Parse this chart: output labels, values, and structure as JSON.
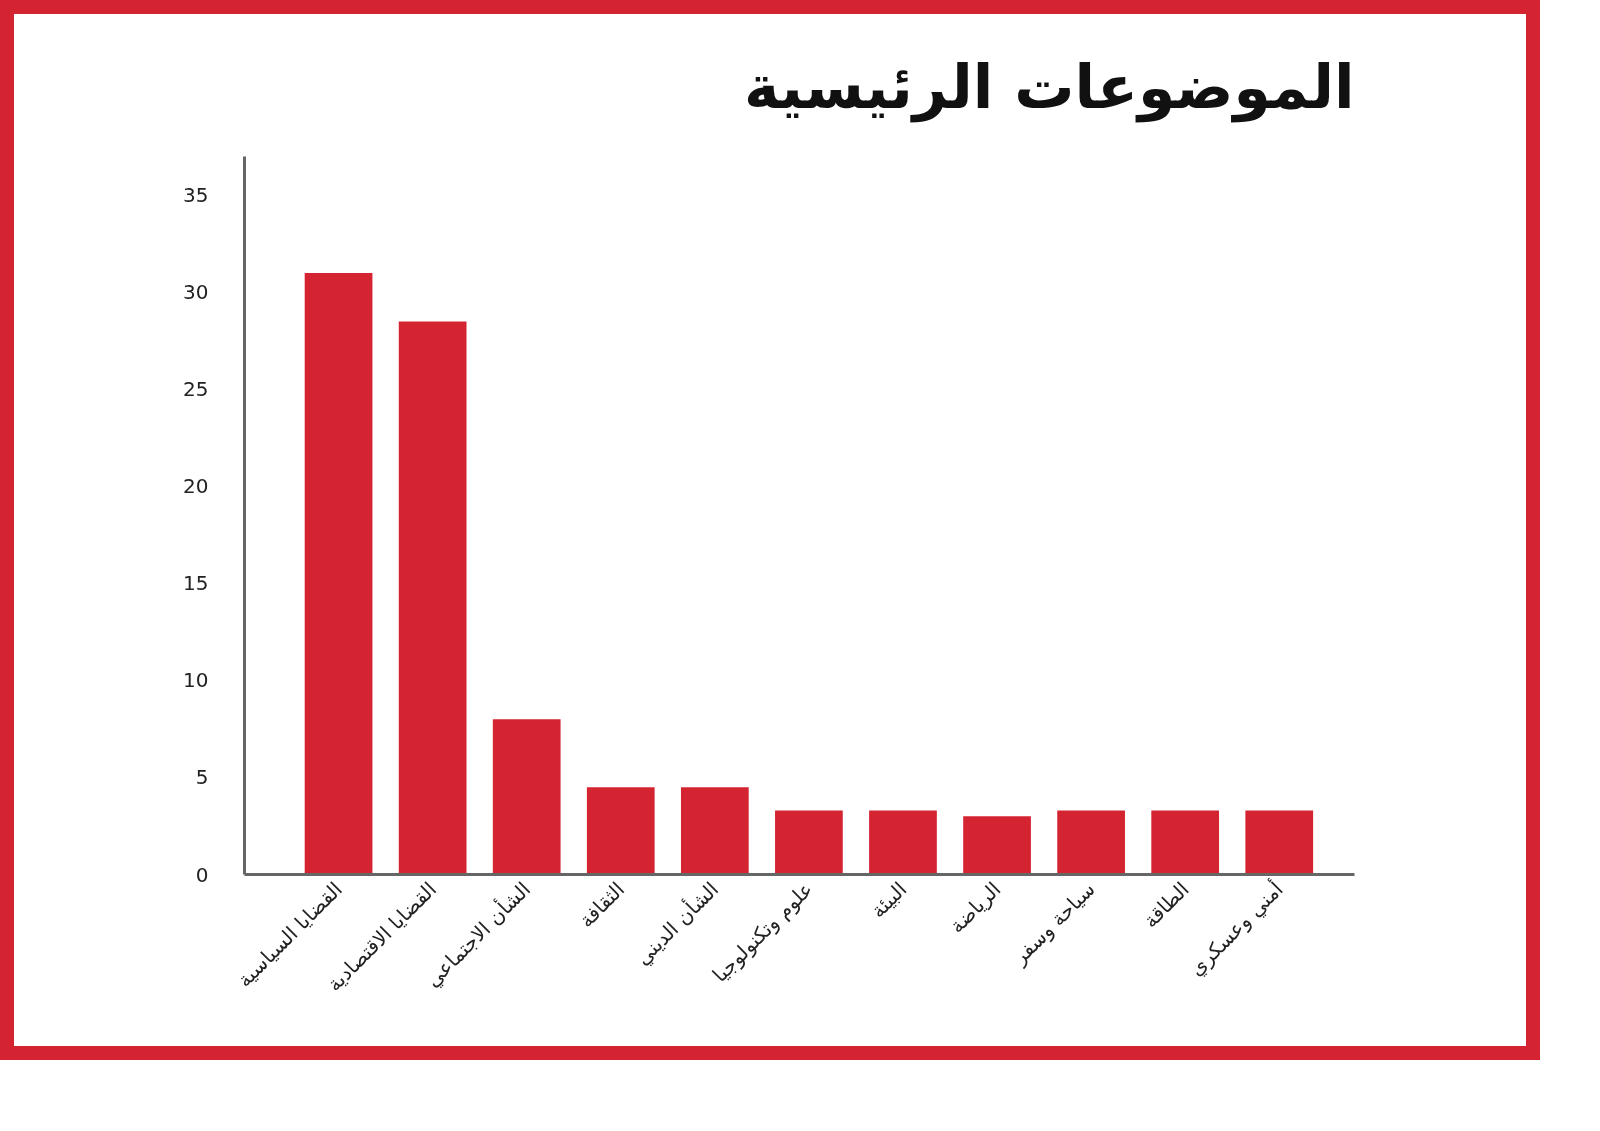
{
  "chart_data": {
    "type": "bar",
    "title": "الموضوعات الرئيسية",
    "categories": [
      "القضايا السياسية",
      "القضايا الاقتصادية",
      "الشأن الاجتماعي",
      "الثقافة",
      "الشأن الديني",
      "علوم وتكنولوجيا",
      "البيئة",
      "الرياضة",
      "سياحة وسفر",
      "الطاقة",
      "أمني وعسكري"
    ],
    "values": [
      31,
      28.5,
      8,
      4.5,
      4.5,
      3.3,
      3.3,
      3,
      3.3,
      3.3,
      3.3
    ],
    "color": "#d42431",
    "ylim": [
      0,
      37
    ],
    "yticks": [
      0,
      5,
      10,
      15,
      20,
      25,
      30,
      35
    ],
    "grid": false
  }
}
